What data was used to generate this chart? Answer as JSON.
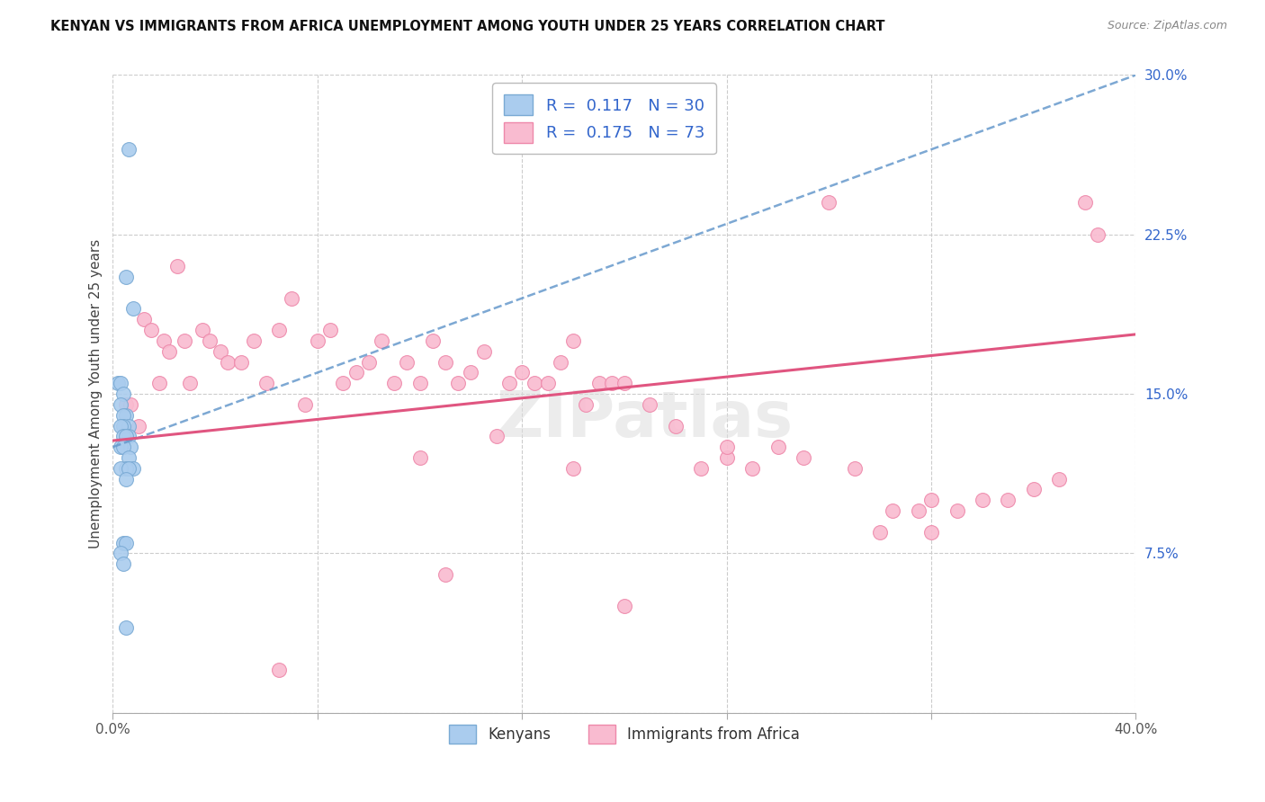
{
  "title": "KENYAN VS IMMIGRANTS FROM AFRICA UNEMPLOYMENT AMONG YOUTH UNDER 25 YEARS CORRELATION CHART",
  "source": "Source: ZipAtlas.com",
  "ylabel": "Unemployment Among Youth under 25 years",
  "xlim": [
    0.0,
    0.4
  ],
  "ylim": [
    0.0,
    0.3
  ],
  "xticks": [
    0.0,
    0.08,
    0.16,
    0.24,
    0.32,
    0.4
  ],
  "yticks": [
    0.0,
    0.075,
    0.15,
    0.225,
    0.3
  ],
  "ytick_labels": [
    "",
    "7.5%",
    "15.0%",
    "22.5%",
    "30.0%"
  ],
  "background_color": "#ffffff",
  "grid_color": "#cccccc",
  "watermark": "ZIPatlas",
  "series1_color": "#aaccee",
  "series1_edge_color": "#7aaad4",
  "series1_line_color": "#6699cc",
  "series2_color": "#f9bbd0",
  "series2_edge_color": "#ee88aa",
  "series2_line_color": "#e05580",
  "series1_label": "Kenyans",
  "series2_label": "Immigrants from Africa",
  "legend_label_color": "#3366cc",
  "ken_r": 0.117,
  "ken_n": 30,
  "afr_r": 0.175,
  "afr_n": 73,
  "ken_line_x0": 0.0,
  "ken_line_y0": 0.125,
  "ken_line_x1": 0.4,
  "ken_line_y1": 0.3,
  "afr_line_x0": 0.0,
  "afr_line_y0": 0.128,
  "afr_line_x1": 0.4,
  "afr_line_y1": 0.178,
  "kenyans_x": [
    0.006,
    0.005,
    0.008,
    0.002,
    0.003,
    0.004,
    0.003,
    0.005,
    0.004,
    0.006,
    0.004,
    0.003,
    0.005,
    0.006,
    0.004,
    0.005,
    0.007,
    0.003,
    0.004,
    0.006,
    0.008,
    0.005,
    0.003,
    0.006,
    0.005,
    0.004,
    0.005,
    0.003,
    0.004,
    0.005
  ],
  "kenyans_y": [
    0.265,
    0.205,
    0.19,
    0.155,
    0.155,
    0.15,
    0.145,
    0.14,
    0.14,
    0.135,
    0.135,
    0.135,
    0.13,
    0.13,
    0.13,
    0.13,
    0.125,
    0.125,
    0.125,
    0.12,
    0.115,
    0.115,
    0.115,
    0.115,
    0.11,
    0.08,
    0.08,
    0.075,
    0.07,
    0.04
  ],
  "africa_x": [
    0.005,
    0.007,
    0.01,
    0.012,
    0.015,
    0.018,
    0.02,
    0.022,
    0.025,
    0.028,
    0.03,
    0.035,
    0.038,
    0.042,
    0.045,
    0.05,
    0.055,
    0.06,
    0.065,
    0.07,
    0.075,
    0.08,
    0.085,
    0.09,
    0.095,
    0.1,
    0.105,
    0.11,
    0.115,
    0.12,
    0.125,
    0.13,
    0.135,
    0.14,
    0.145,
    0.15,
    0.155,
    0.16,
    0.165,
    0.17,
    0.175,
    0.18,
    0.185,
    0.19,
    0.195,
    0.2,
    0.21,
    0.22,
    0.23,
    0.24,
    0.25,
    0.26,
    0.27,
    0.28,
    0.29,
    0.3,
    0.305,
    0.315,
    0.32,
    0.33,
    0.34,
    0.35,
    0.36,
    0.37,
    0.38,
    0.385,
    0.12,
    0.18,
    0.24,
    0.32,
    0.065,
    0.13,
    0.2
  ],
  "africa_y": [
    0.145,
    0.145,
    0.135,
    0.185,
    0.18,
    0.155,
    0.175,
    0.17,
    0.21,
    0.175,
    0.155,
    0.18,
    0.175,
    0.17,
    0.165,
    0.165,
    0.175,
    0.155,
    0.18,
    0.195,
    0.145,
    0.175,
    0.18,
    0.155,
    0.16,
    0.165,
    0.175,
    0.155,
    0.165,
    0.155,
    0.175,
    0.165,
    0.155,
    0.16,
    0.17,
    0.13,
    0.155,
    0.16,
    0.155,
    0.155,
    0.165,
    0.175,
    0.145,
    0.155,
    0.155,
    0.155,
    0.145,
    0.135,
    0.115,
    0.12,
    0.115,
    0.125,
    0.12,
    0.24,
    0.115,
    0.085,
    0.095,
    0.095,
    0.085,
    0.095,
    0.1,
    0.1,
    0.105,
    0.11,
    0.24,
    0.225,
    0.12,
    0.115,
    0.125,
    0.1,
    0.02,
    0.065,
    0.05
  ]
}
